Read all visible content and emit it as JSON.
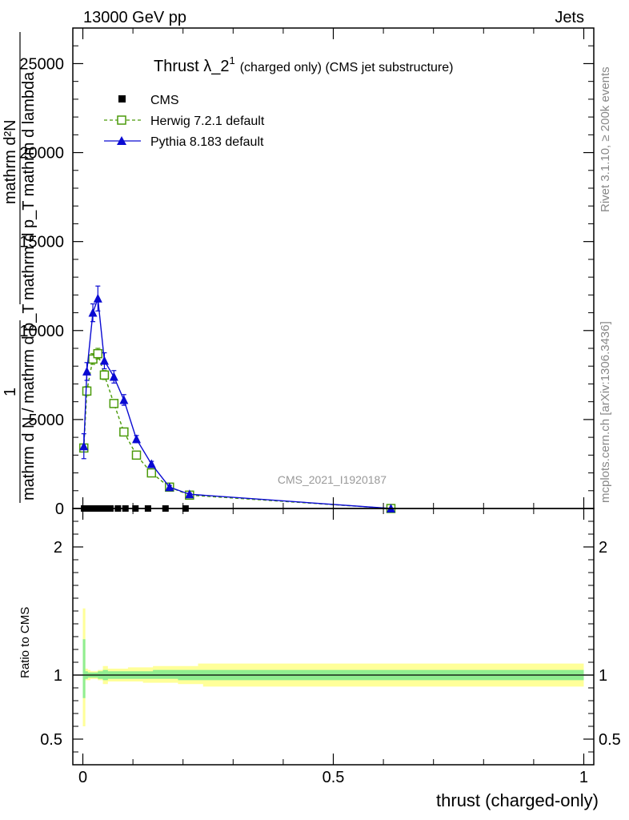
{
  "header": {
    "left": "13000 GeV pp",
    "right": "Jets"
  },
  "side_labels": {
    "rivet": "Rivet 3.1.10, ≥ 200k events",
    "mcplots": "mcplots.cern.ch [arXiv:1306.3436]"
  },
  "watermark": "CMS_2021_I1920187",
  "colors": {
    "cms": "#000000",
    "herwig": "#4b9a0a",
    "pythia": "#0a0ad2",
    "band_outer": "#ffff99",
    "band_inner": "#90ee90"
  },
  "chart_data": [
    {
      "type": "line",
      "title": "Thrust λ_2",
      "title_sup": "1",
      "title_suffix": "(charged only) (CMS jet substructure)",
      "ylabel_main": "mathrm d²N",
      "ylabel_main_sub": "mathrm d p_T mathrm d lambda",
      "ylabel_norm": "1",
      "ylabel_norm_sub": "mathrm d N / mathrm d p_T",
      "xlim": [
        -0.02,
        1.02
      ],
      "ylim": [
        0,
        27000
      ],
      "yticks": [
        0,
        5000,
        10000,
        15000,
        20000,
        25000
      ],
      "ytick_labels": [
        "0",
        "5000",
        "10000",
        "15000",
        "20000",
        "25000"
      ],
      "legend": [
        {
          "name": "CMS",
          "marker": "square-filled"
        },
        {
          "name": "Herwig 7.2.1 default",
          "marker": "square-open"
        },
        {
          "name": "Pythia 8.183 default",
          "marker": "triangle"
        }
      ],
      "series": [
        {
          "name": "CMS",
          "x": [
            0.0025,
            0.0075,
            0.0125,
            0.0175,
            0.025,
            0.035,
            0.045,
            0.055,
            0.07,
            0.085,
            0.105,
            0.13,
            0.165,
            0.205
          ],
          "y": [
            0,
            0,
            0,
            0,
            0,
            0,
            0,
            0,
            0,
            0,
            0,
            0,
            0,
            0
          ]
        },
        {
          "name": "Herwig 7.2.1 default",
          "x": [
            0.002,
            0.008,
            0.02,
            0.03,
            0.043,
            0.062,
            0.082,
            0.107,
            0.137,
            0.173,
            0.213,
            0.615
          ],
          "y": [
            3400,
            6600,
            8400,
            8700,
            7500,
            5900,
            4300,
            3000,
            2000,
            1200,
            750,
            0
          ],
          "yerr": [
            150,
            250,
            300,
            300,
            250,
            200,
            150,
            120,
            80,
            60,
            40,
            0
          ]
        },
        {
          "name": "Pythia 8.183 default",
          "x": [
            0.002,
            0.008,
            0.02,
            0.03,
            0.043,
            0.062,
            0.082,
            0.107,
            0.137,
            0.173,
            0.213,
            0.615
          ],
          "y": [
            3500,
            7700,
            11000,
            11800,
            8300,
            7400,
            6100,
            3900,
            2500,
            1200,
            800,
            0
          ],
          "yerr": [
            700,
            500,
            500,
            700,
            450,
            350,
            300,
            200,
            150,
            100,
            60,
            0
          ]
        }
      ]
    },
    {
      "type": "area",
      "ylabel": "Ratio to CMS",
      "xlabel": "thrust (charged-only)",
      "xlim": [
        -0.02,
        1.02
      ],
      "ylim": [
        0.3,
        2.3
      ],
      "yticks": [
        0.5,
        1,
        2
      ],
      "ytick_labels": [
        "0.5",
        "1",
        "2"
      ],
      "xticks": [
        0,
        0.5,
        1
      ],
      "xtick_labels": [
        "0",
        "0.5",
        "1"
      ],
      "bins": [
        0,
        0.005,
        0.01,
        0.015,
        0.02,
        0.03,
        0.04,
        0.05,
        0.06,
        0.08,
        0.09,
        0.12,
        0.14,
        0.19,
        0.23,
        0.24,
        1.0
      ],
      "outer_lo": [
        0.6,
        0.96,
        0.96,
        0.97,
        0.97,
        0.96,
        0.93,
        0.95,
        0.95,
        0.95,
        0.95,
        0.94,
        0.94,
        0.93,
        0.93,
        0.91
      ],
      "outer_hi": [
        1.52,
        1.05,
        1.04,
        1.03,
        1.03,
        1.04,
        1.07,
        1.05,
        1.05,
        1.05,
        1.06,
        1.06,
        1.07,
        1.07,
        1.09,
        1.09
      ],
      "inner_lo": [
        0.82,
        0.97,
        0.98,
        0.98,
        0.98,
        0.97,
        0.96,
        0.97,
        0.97,
        0.97,
        0.97,
        0.97,
        0.97,
        0.96,
        0.96,
        0.96
      ],
      "inner_hi": [
        1.28,
        1.03,
        1.02,
        1.02,
        1.02,
        1.03,
        1.04,
        1.03,
        1.03,
        1.03,
        1.03,
        1.03,
        1.04,
        1.04,
        1.04,
        1.04
      ]
    }
  ]
}
